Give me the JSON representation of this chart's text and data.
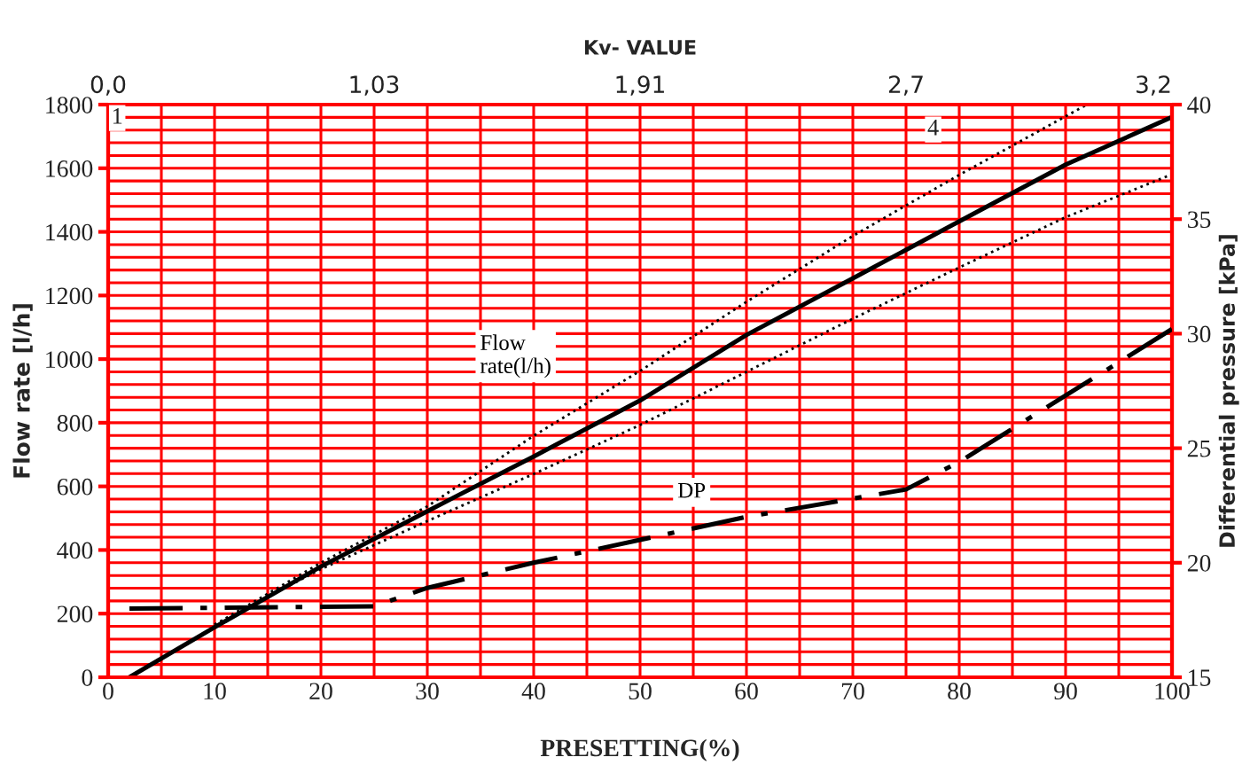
{
  "chart_data": {
    "type": "line",
    "xlabel": "PRESETTING(%)",
    "ylabel": "Flow rate [l/h]",
    "y2label": "Differential pressure [kPa]",
    "x2label": "Kv- VALUE",
    "xlim": [
      0,
      100
    ],
    "xticks": [
      0,
      10,
      20,
      30,
      40,
      50,
      60,
      70,
      80,
      90,
      100
    ],
    "ylim": [
      0,
      1800
    ],
    "yticks": [
      0,
      200,
      400,
      600,
      800,
      1000,
      1200,
      1400,
      1600,
      1800
    ],
    "y2lim": [
      15,
      40
    ],
    "y2ticks": [
      15,
      20,
      25,
      30,
      35,
      40
    ],
    "grid": true,
    "legend": false,
    "series": [
      {
        "name": "Flow\nrate(l/h)",
        "color": "#000000",
        "line_style": "solid",
        "x": [
          2,
          10,
          20,
          30,
          40,
          50,
          60,
          70,
          80,
          90,
          100
        ],
        "values": [
          0,
          157,
          348,
          522,
          694,
          870,
          1076,
          1254,
          1433,
          1611,
          1761
        ]
      },
      {
        "color": "#000000",
        "line_style": "dotted",
        "x": [
          10,
          20,
          30,
          40,
          50,
          60,
          70,
          80,
          92
        ],
        "values": [
          165,
          360,
          537,
          759,
          963,
          1180,
          1387,
          1579,
          1800
        ]
      },
      {
        "color": "#000000",
        "line_style": "dotted",
        "x": [
          10,
          20,
          30,
          40,
          50,
          60,
          70,
          80,
          90,
          100
        ],
        "values": [
          165,
          340,
          491,
          639,
          793,
          960,
          1127,
          1288,
          1446,
          1581
        ]
      },
      {
        "name": "DP",
        "color": "#000000",
        "line_style": "dashdot",
        "axis": "y2",
        "x": [
          2,
          25,
          30,
          40,
          50,
          60,
          75,
          80,
          90,
          100
        ],
        "values": [
          18.0,
          18.1,
          18.9,
          20.0,
          21.0,
          22.0,
          23.2,
          24.4,
          27.3,
          30.2
        ]
      }
    ],
    "annotations": [
      "0,0",
      "1,03",
      "1,91",
      "2,7",
      "3,2",
      "1",
      "4"
    ]
  }
}
